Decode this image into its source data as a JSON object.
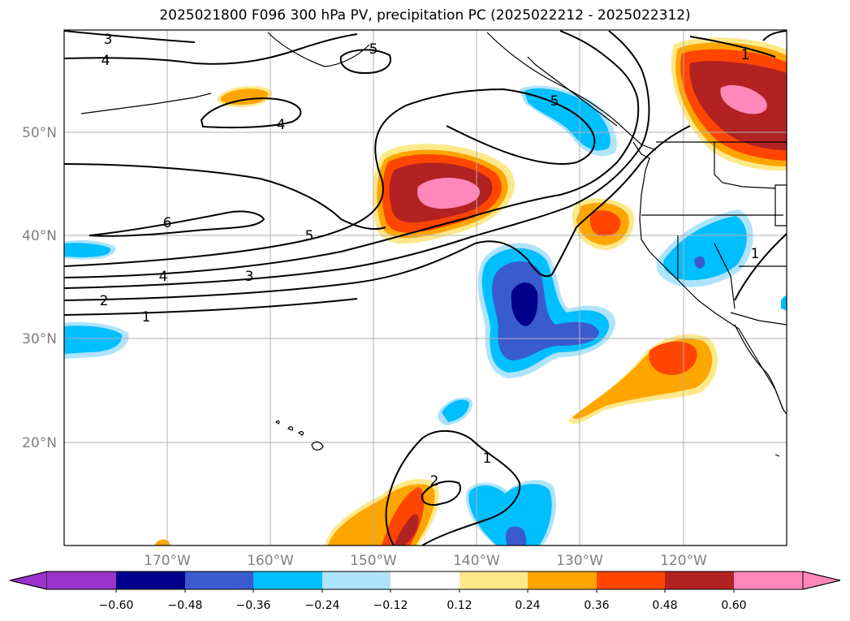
{
  "title": "2025021800 F096 300 hPa PV, precipitation PC (2025022212 - 2025022312)",
  "map": {
    "lon_labels": [
      "170°W",
      "160°W",
      "150°W",
      "140°W",
      "130°W",
      "120°W"
    ],
    "lat_labels": [
      "50°N",
      "40°N",
      "30°N",
      "20°N"
    ],
    "contour_labels": [
      "3",
      "4",
      "5",
      "4",
      "6",
      "5",
      "4",
      "3",
      "2",
      "1",
      "1",
      "2",
      "1",
      "1",
      "5"
    ]
  },
  "colorbar": {
    "ticks": [
      "−0.60",
      "−0.48",
      "−0.36",
      "−0.24",
      "−0.12",
      "0.12",
      "0.24",
      "0.36",
      "0.48",
      "0.60"
    ],
    "colors": [
      "#9933cc",
      "#00008b",
      "#3a5bd0",
      "#00bfff",
      "#aee4fb",
      "#ffffff",
      "#fde98a",
      "#ffa500",
      "#ff4500",
      "#b22222",
      "#ff88bb"
    ]
  }
}
